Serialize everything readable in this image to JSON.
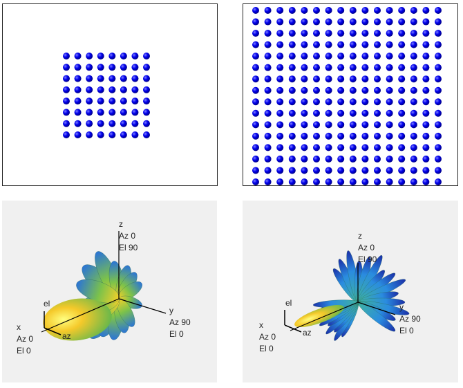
{
  "panels": [
    {
      "axes": [
        {
          "name": "z",
          "az": "Az 0",
          "el": "El 90"
        },
        {
          "name": "y",
          "az": "Az 90",
          "el": "El 0"
        },
        {
          "name": "x",
          "az": "Az 0",
          "el": "El 0"
        }
      ],
      "el_label": "el",
      "az_label": "az"
    },
    {
      "axes": [
        {
          "name": "z",
          "az": "Az 0",
          "el": "El 90"
        },
        {
          "name": "y",
          "az": "Az 90",
          "el": "El 0"
        },
        {
          "name": "x",
          "az": "Az 0",
          "el": "El 0"
        }
      ],
      "el_label": "el",
      "az_label": "az"
    }
  ]
}
